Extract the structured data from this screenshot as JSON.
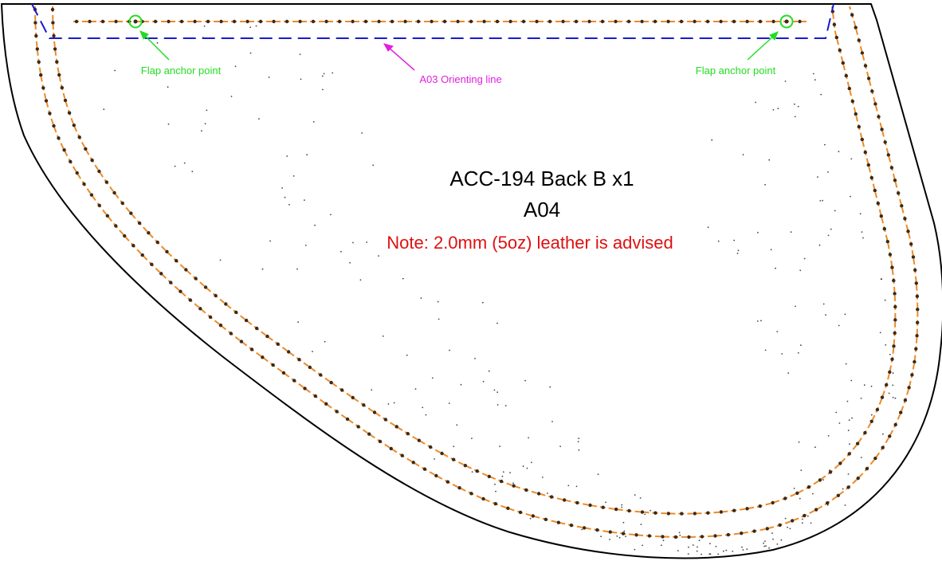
{
  "pattern": {
    "title": "ACC-194 Back B x1",
    "code": "A04",
    "note": "Note: 2.0mm (5oz) leather is advised"
  },
  "annotations": {
    "anchor_left": "Flap anchor point",
    "anchor_right": "Flap anchor point",
    "orienting_line": "A03 Orienting line"
  },
  "colors": {
    "outline": "#000000",
    "stitch": "#f08a24",
    "hole": "#3a2a1a",
    "orienting": "#1a1ad0",
    "anchor": "#22dd22",
    "orienting_text": "#e020e0",
    "note": "#e01010"
  }
}
